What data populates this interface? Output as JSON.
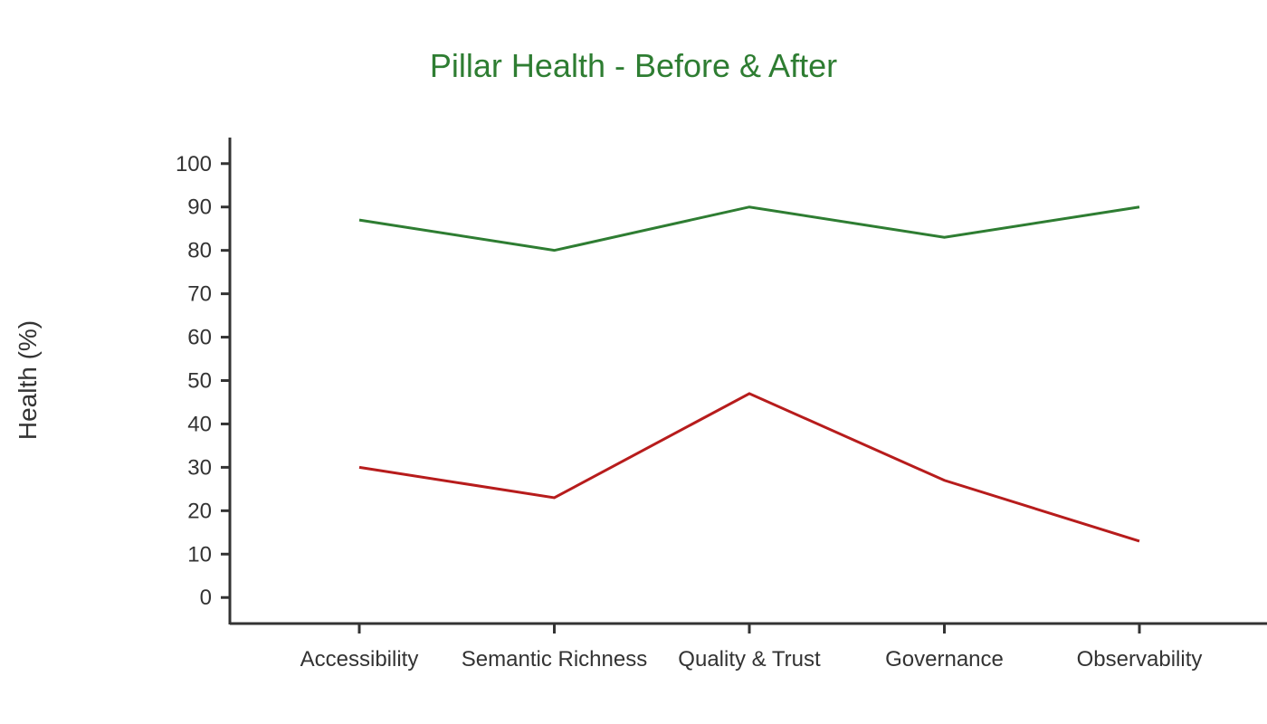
{
  "chart_data": {
    "type": "line",
    "title": "Pillar Health - Before & After",
    "xlabel": "",
    "ylabel": "Health (%)",
    "categories": [
      "Accessibility",
      "Semantic Richness",
      "Quality & Trust",
      "Governance",
      "Observability"
    ],
    "ylim": [
      -6,
      106
    ],
    "yticks": [
      0,
      10,
      20,
      30,
      40,
      50,
      60,
      70,
      80,
      90,
      100
    ],
    "grid": false,
    "legend": "none",
    "series": [
      {
        "values": [
          87,
          80,
          90,
          83,
          90
        ],
        "color": "#2e7d32"
      },
      {
        "values": [
          30,
          23,
          47,
          27,
          13
        ],
        "color": "#b71c1c"
      }
    ]
  },
  "colors": {
    "title": "#2e7d32",
    "axis": "#333333"
  }
}
